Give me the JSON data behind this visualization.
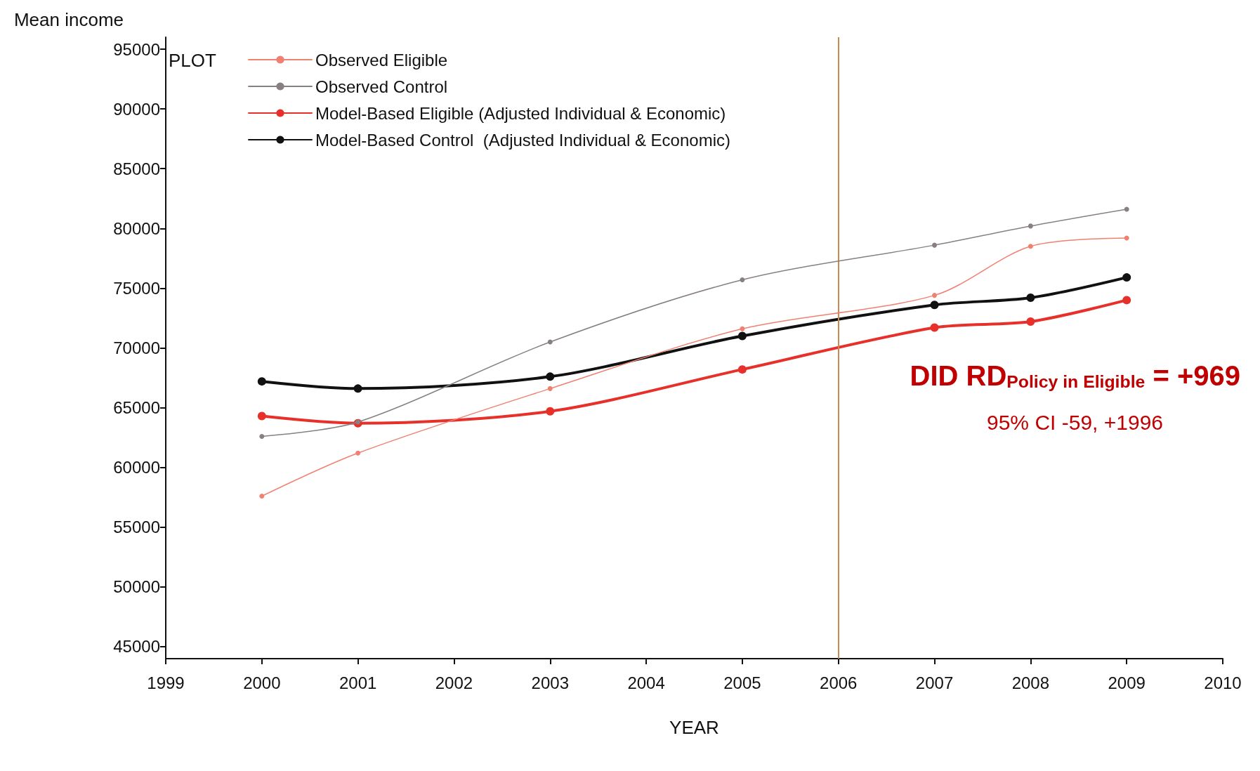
{
  "chart_data": {
    "type": "line",
    "ylabel": "Mean income",
    "xlabel": "YEAR",
    "xlim": [
      1999,
      2010
    ],
    "xticks": [
      1999,
      2000,
      2001,
      2002,
      2003,
      2004,
      2005,
      2006,
      2007,
      2008,
      2009,
      2010
    ],
    "ylim": [
      44000,
      96000
    ],
    "yticks": [
      45000,
      50000,
      55000,
      60000,
      65000,
      70000,
      75000,
      80000,
      85000,
      90000,
      95000
    ],
    "grid": false,
    "legend": "top left",
    "marker": "circle",
    "x": [
      2000,
      2001,
      2003,
      2005,
      2007,
      2008,
      2009
    ],
    "series": [
      {
        "name": "Observed Eligible",
        "color": "#f08070",
        "values": [
          57600,
          61200,
          66600,
          71600,
          74400,
          78500,
          79200
        ]
      },
      {
        "name": "Observed Control",
        "color": "#888080",
        "values": [
          62600,
          63800,
          70500,
          75700,
          78600,
          80200,
          81600
        ]
      },
      {
        "name": "Model-Based Eligible (Adjusted Individual & Economic)",
        "color": "#e8302a",
        "values": [
          64300,
          63700,
          64700,
          68200,
          71700,
          72200,
          74000
        ]
      },
      {
        "name": "Model-Based Control  (Adjusted Individual & Economic)",
        "color": "#111111",
        "values": [
          67200,
          66600,
          67600,
          71000,
          73600,
          74200,
          75900
        ]
      }
    ],
    "ref_lines": [
      {
        "axis": "x",
        "value": 2006,
        "color": "#c88a50"
      }
    ],
    "annotations": [
      "PLOT",
      "DID RD$_{Policy in Eligible}$ = +969",
      "95% CI -59, +1996"
    ]
  }
}
